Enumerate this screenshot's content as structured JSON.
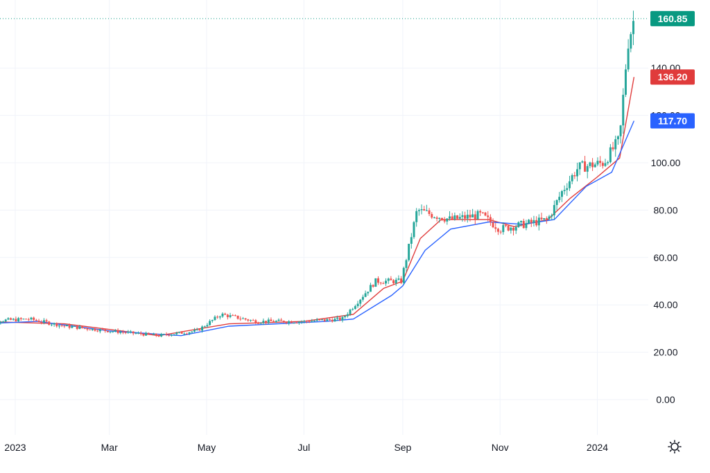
{
  "chart_data": {
    "type": "candlestick",
    "title": "",
    "xlabel": "",
    "ylabel": "",
    "ylim": [
      -10,
      168
    ],
    "grid": true,
    "y_ticks": [
      "0.00",
      "20.00",
      "40.00",
      "60.00",
      "80.00",
      "100.00",
      "120.00",
      "140.00"
    ],
    "x_ticks": [
      {
        "label": "2023",
        "date": "2023-01"
      },
      {
        "label": "Mar",
        "date": "2023-03"
      },
      {
        "label": "May",
        "date": "2023-05"
      },
      {
        "label": "Jul",
        "date": "2023-07"
      },
      {
        "label": "Sep",
        "date": "2023-09"
      },
      {
        "label": "Nov",
        "date": "2023-11"
      },
      {
        "label": "2024",
        "date": "2024-01"
      }
    ],
    "price_badges": [
      {
        "value": "160.85",
        "color": "#089981",
        "role": "last-price"
      },
      {
        "value": "136.20",
        "color": "#e03b3b",
        "role": "short-ema"
      },
      {
        "value": "117.70",
        "color": "#2962ff",
        "role": "long-ema"
      }
    ],
    "series": [
      {
        "type": "candlestick",
        "up_color": "#26a69a",
        "down_color": "#ef5350",
        "close": [
          {
            "date": "2022-12-10",
            "value": 33
          },
          {
            "date": "2023-01-10",
            "value": 34
          },
          {
            "date": "2023-02-01",
            "value": 31
          },
          {
            "date": "2023-03-01",
            "value": 29
          },
          {
            "date": "2023-04-01",
            "value": 27
          },
          {
            "date": "2023-04-25",
            "value": 29
          },
          {
            "date": "2023-05-10",
            "value": 36
          },
          {
            "date": "2023-06-01",
            "value": 33
          },
          {
            "date": "2023-07-01",
            "value": 33
          },
          {
            "date": "2023-07-25",
            "value": 34
          },
          {
            "date": "2023-08-15",
            "value": 50
          },
          {
            "date": "2023-08-31",
            "value": 50
          },
          {
            "date": "2023-09-10",
            "value": 80
          },
          {
            "date": "2023-09-20",
            "value": 78
          },
          {
            "date": "2023-10-01",
            "value": 76
          },
          {
            "date": "2023-10-20",
            "value": 78
          },
          {
            "date": "2023-11-01",
            "value": 72
          },
          {
            "date": "2023-12-01",
            "value": 76
          },
          {
            "date": "2023-12-10",
            "value": 88
          },
          {
            "date": "2023-12-20",
            "value": 98
          },
          {
            "date": "2024-01-05",
            "value": 100
          },
          {
            "date": "2024-01-15",
            "value": 110
          },
          {
            "date": "2024-01-20",
            "value": 150
          },
          {
            "date": "2024-01-24",
            "value": 160.85
          }
        ]
      },
      {
        "type": "line",
        "color": "#e03b3b",
        "values": [
          {
            "date": "2022-12-10",
            "value": 33
          },
          {
            "date": "2023-02-01",
            "value": 32
          },
          {
            "date": "2023-04-01",
            "value": 27
          },
          {
            "date": "2023-05-15",
            "value": 32
          },
          {
            "date": "2023-07-01",
            "value": 33
          },
          {
            "date": "2023-08-01",
            "value": 36
          },
          {
            "date": "2023-08-20",
            "value": 47
          },
          {
            "date": "2023-09-01",
            "value": 50
          },
          {
            "date": "2023-09-12",
            "value": 68
          },
          {
            "date": "2023-09-25",
            "value": 76
          },
          {
            "date": "2023-10-25",
            "value": 76
          },
          {
            "date": "2023-11-10",
            "value": 73
          },
          {
            "date": "2023-12-01",
            "value": 76
          },
          {
            "date": "2023-12-15",
            "value": 85
          },
          {
            "date": "2024-01-01",
            "value": 94
          },
          {
            "date": "2024-01-15",
            "value": 102
          },
          {
            "date": "2024-01-24",
            "value": 136.2
          }
        ]
      },
      {
        "type": "line",
        "color": "#2962ff",
        "values": [
          {
            "date": "2022-12-10",
            "value": 32
          },
          {
            "date": "2023-01-15",
            "value": 33
          },
          {
            "date": "2023-03-01",
            "value": 29
          },
          {
            "date": "2023-04-15",
            "value": 27
          },
          {
            "date": "2023-05-15",
            "value": 31
          },
          {
            "date": "2023-07-15",
            "value": 33
          },
          {
            "date": "2023-08-01",
            "value": 34
          },
          {
            "date": "2023-08-25",
            "value": 44
          },
          {
            "date": "2023-09-01",
            "value": 48
          },
          {
            "date": "2023-09-15",
            "value": 63
          },
          {
            "date": "2023-10-01",
            "value": 72
          },
          {
            "date": "2023-10-25",
            "value": 75
          },
          {
            "date": "2023-11-15",
            "value": 74
          },
          {
            "date": "2023-12-05",
            "value": 76
          },
          {
            "date": "2023-12-25",
            "value": 90
          },
          {
            "date": "2024-01-10",
            "value": 96
          },
          {
            "date": "2024-01-24",
            "value": 117.7
          }
        ]
      }
    ]
  },
  "icons": {
    "settings": "gear-icon"
  }
}
